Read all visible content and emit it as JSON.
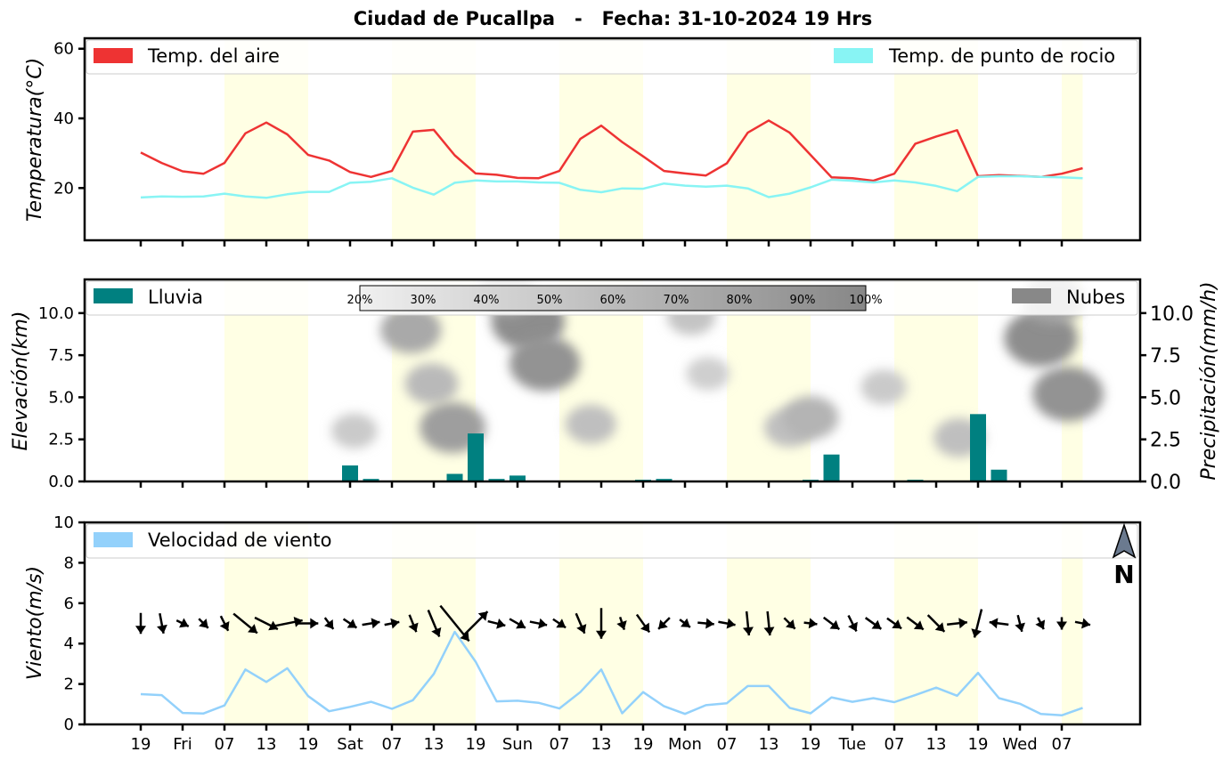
{
  "title": "Ciudad de Pucallpa   -   Fecha: 31-10-2024 19 Hrs",
  "colors": {
    "temp_air": "#ee3333",
    "temp_dew": "#88f4f4",
    "rain": "#008080",
    "clouds": "#888888",
    "wind": "#93d1fb",
    "day_band": "#ffffe4"
  },
  "x_axis": {
    "ticks": [
      "19",
      "Fri",
      "07",
      "13",
      "19",
      "Sat",
      "07",
      "13",
      "19",
      "Sun",
      "07",
      "13",
      "19",
      "Mon",
      "07",
      "13",
      "19",
      "Tue",
      "07",
      "13",
      "19",
      "Wed",
      "07"
    ],
    "step_hours": 3,
    "points": 46
  },
  "day_bands": [
    [
      4,
      8
    ],
    [
      12,
      16
    ],
    [
      20,
      24
    ],
    [
      28,
      32
    ],
    [
      36,
      40
    ],
    [
      44,
      45
    ]
  ],
  "north_label": "N",
  "chart_data": [
    {
      "type": "line",
      "ylabel": "Temperatura(°C)",
      "ylim": [
        5,
        63
      ],
      "yticks": [
        20,
        40,
        60
      ],
      "legend": "top",
      "series": [
        {
          "name": "Temp. del aire",
          "color": "#ee3333",
          "values": [
            30.2,
            27.2,
            24.8,
            24.1,
            27.2,
            35.7,
            38.8,
            35.4,
            29.5,
            27.9,
            24.6,
            23.2,
            24.9,
            36.2,
            36.7,
            29.4,
            24.2,
            23.8,
            22.9,
            22.8,
            24.9,
            34.1,
            37.9,
            33.2,
            29.1,
            24.9,
            24.2,
            23.6,
            27.1,
            35.9,
            39.4,
            35.9,
            29.5,
            23.1,
            22.8,
            22.1,
            24.1,
            32.7,
            34.8,
            36.6,
            23.4,
            23.7,
            23.5,
            23.2,
            24.1,
            25.7
          ]
        },
        {
          "name": "Temp. de punto de rocio",
          "color": "#88f4f4",
          "values": [
            17.3,
            17.6,
            17.5,
            17.6,
            18.4,
            17.6,
            17.2,
            18.2,
            18.9,
            18.9,
            21.5,
            21.8,
            22.8,
            20.1,
            18.1,
            21.5,
            22.2,
            21.9,
            21.9,
            21.6,
            21.5,
            19.5,
            18.8,
            19.9,
            19.8,
            21.3,
            20.7,
            20.4,
            20.7,
            19.9,
            17.4,
            18.4,
            20.2,
            22.4,
            22.1,
            21.6,
            22.2,
            21.6,
            20.6,
            19.1,
            23.2,
            23.4,
            23.4,
            23.2,
            23.1,
            22.8
          ]
        }
      ]
    },
    {
      "type": "bar",
      "ylabel": "Elevación(km)",
      "ylabel_right": "Precipitación(mm/h)",
      "ylim": [
        0,
        12
      ],
      "yticks": [
        0.0,
        2.5,
        5.0,
        7.5,
        10.0
      ],
      "series": [
        {
          "name": "Lluvia",
          "color": "#008080",
          "values": [
            0,
            0,
            0,
            0,
            0,
            0,
            0,
            0,
            0,
            0,
            0.95,
            0.15,
            0,
            0,
            0,
            0.45,
            2.85,
            0.15,
            0.35,
            0,
            0,
            0,
            0,
            0,
            0.1,
            0.15,
            0,
            0,
            0,
            0,
            0,
            0,
            0.1,
            1.6,
            0,
            0,
            0,
            0.1,
            0,
            0,
            4.0,
            0.7,
            0,
            0,
            0,
            0
          ]
        },
        {
          "name": "Nubes",
          "color": "#888888"
        }
      ],
      "clouds_colorbar": [
        "20%",
        "30%",
        "40%",
        "50%",
        "60%",
        "70%",
        "80%",
        "90%",
        "100%"
      ],
      "clouds": [
        {
          "x": 12.9,
          "y": 9.0,
          "level": 0.65
        },
        {
          "x": 13.9,
          "y": 5.8,
          "level": 0.5
        },
        {
          "x": 14.9,
          "y": 3.2,
          "level": 0.75
        },
        {
          "x": 18.5,
          "y": 9.5,
          "level": 0.9
        },
        {
          "x": 19.3,
          "y": 7.0,
          "level": 0.85
        },
        {
          "x": 17.5,
          "y": 11.2,
          "level": 0.6
        },
        {
          "x": 21.5,
          "y": 3.4,
          "level": 0.45
        },
        {
          "x": 26.3,
          "y": 9.8,
          "level": 0.4
        },
        {
          "x": 27.1,
          "y": 6.4,
          "level": 0.3
        },
        {
          "x": 31.0,
          "y": 3.2,
          "level": 0.45
        },
        {
          "x": 32.0,
          "y": 3.8,
          "level": 0.55
        },
        {
          "x": 35.5,
          "y": 5.6,
          "level": 0.35
        },
        {
          "x": 39.1,
          "y": 2.6,
          "level": 0.45
        },
        {
          "x": 10.2,
          "y": 3.0,
          "level": 0.35
        },
        {
          "x": 43.0,
          "y": 8.5,
          "level": 0.9
        },
        {
          "x": 44.3,
          "y": 5.2,
          "level": 0.85
        },
        {
          "x": 43.6,
          "y": 10.8,
          "level": 0.7
        }
      ]
    },
    {
      "type": "line",
      "ylabel": "Viento(m/s)",
      "ylim": [
        0,
        10
      ],
      "yticks": [
        0,
        2,
        4,
        6,
        8,
        10
      ],
      "series": [
        {
          "name": "Velocidad de viento",
          "color": "#93d1fb",
          "values": [
            1.5,
            1.45,
            0.57,
            0.54,
            0.94,
            2.72,
            2.1,
            2.78,
            1.4,
            0.65,
            0.87,
            1.12,
            0.77,
            1.2,
            2.5,
            4.58,
            3.1,
            1.14,
            1.17,
            1.07,
            0.79,
            1.6,
            2.72,
            0.55,
            1.6,
            0.9,
            0.52,
            0.95,
            1.05,
            1.9,
            1.9,
            0.82,
            0.55,
            1.34,
            1.12,
            1.3,
            1.1,
            1.45,
            1.82,
            1.42,
            2.55,
            1.3,
            1.02,
            0.52,
            0.45,
            0.82
          ]
        }
      ],
      "wind_arrows": [
        {
          "u": 0,
          "v": -1
        },
        {
          "u": 0.15,
          "v": -0.8
        },
        {
          "u": 0.2,
          "v": -0.1
        },
        {
          "u": 0.15,
          "v": -0.15
        },
        {
          "u": 0.1,
          "v": -0.2
        },
        {
          "u": 1.1,
          "v": -0.9
        },
        {
          "u": 1.2,
          "v": -0.6
        },
        {
          "u": 1.0,
          "v": 0.2
        },
        {
          "u": 0.9,
          "v": 0
        },
        {
          "u": 0.15,
          "v": -0.2
        },
        {
          "u": 0.3,
          "v": -0.2
        },
        {
          "u": 0.6,
          "v": 0.1
        },
        {
          "u": 0.5,
          "v": 0.1
        },
        {
          "u": 0.2,
          "v": -0.5
        },
        {
          "u": 0.5,
          "v": -1.2
        },
        {
          "u": 1.3,
          "v": -1.6
        },
        {
          "u": 1.2,
          "v": 1.2
        },
        {
          "u": 0.6,
          "v": -0.15
        },
        {
          "u": 0.7,
          "v": -0.4
        },
        {
          "u": 0.5,
          "v": -0.1
        },
        {
          "u": 0.3,
          "v": -0.2
        },
        {
          "u": 0.3,
          "v": -0.7
        },
        {
          "u": 0,
          "v": -1.4
        },
        {
          "u": 0.1,
          "v": -0.3
        },
        {
          "u": 0.5,
          "v": -0.7
        },
        {
          "u": -0.3,
          "v": -0.3
        },
        {
          "u": 0.2,
          "v": -0.15
        },
        {
          "u": 0.5,
          "v": -0.05
        },
        {
          "u": 0.55,
          "v": -0.1
        },
        {
          "u": 0.1,
          "v": -1.0
        },
        {
          "u": 0.1,
          "v": -1.0
        },
        {
          "u": 0.3,
          "v": -0.3
        },
        {
          "u": 0.4,
          "v": -0.05
        },
        {
          "u": 0.8,
          "v": -0.6
        },
        {
          "u": 0.3,
          "v": -0.6
        },
        {
          "u": 0.7,
          "v": -0.5
        },
        {
          "u": 0.7,
          "v": -0.5
        },
        {
          "u": 0.8,
          "v": -0.6
        },
        {
          "u": 0.8,
          "v": -0.8
        },
        {
          "u": 0.9,
          "v": 0.1
        },
        {
          "u": -0.3,
          "v": -1.2
        },
        {
          "u": -0.8,
          "v": 0.1
        },
        {
          "u": 0.1,
          "v": -0.4
        },
        {
          "u": 0.1,
          "v": -0.2
        },
        {
          "u": 0,
          "v": -0.3
        },
        {
          "u": 0.5,
          "v": -0.1
        }
      ]
    }
  ]
}
